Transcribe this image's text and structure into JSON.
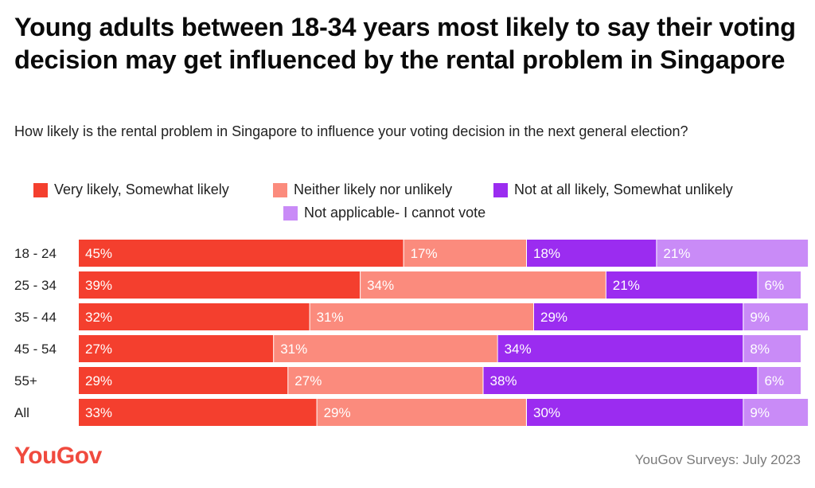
{
  "title": "Young adults between 18-34 years most likely to say their voting decision may get influenced by the rental problem in Singapore",
  "subtitle": "How likely is the rental problem in Singapore to influence your voting decision in the next general election?",
  "logo": "YouGov",
  "source": "YouGov Surveys: July 2023",
  "colors": {
    "very_likely": "#f43f2e",
    "neither": "#fb8b7d",
    "not_likely": "#9b2cf0",
    "not_applicable": "#c98bf7"
  },
  "chart_data": {
    "type": "bar",
    "orientation": "horizontal",
    "stacked": true,
    "title": "Young adults between 18-34 years most likely to say their voting decision may get influenced by the rental problem in Singapore",
    "subtitle": "How likely is the rental problem in Singapore to influence your voting decision in the next general election?",
    "categories": [
      "18 - 24",
      "25 - 34",
      "35 - 44",
      "45 - 54",
      "55+",
      "All"
    ],
    "series": [
      {
        "name": "Very likely, Somewhat likely",
        "color": "#f43f2e",
        "values": [
          45,
          39,
          32,
          27,
          29,
          33
        ]
      },
      {
        "name": "Neither likely nor unlikely",
        "color": "#fb8b7d",
        "values": [
          17,
          34,
          31,
          31,
          27,
          29
        ]
      },
      {
        "name": "Not at all likely, Somewhat unlikely",
        "color": "#9b2cf0",
        "values": [
          18,
          21,
          29,
          34,
          38,
          30
        ]
      },
      {
        "name": "Not applicable- I cannot vote",
        "color": "#c98bf7",
        "values": [
          21,
          6,
          9,
          8,
          6,
          9
        ]
      }
    ],
    "value_suffix": "%",
    "xlim": [
      0,
      100
    ],
    "legend_position": "top",
    "grid": false
  }
}
